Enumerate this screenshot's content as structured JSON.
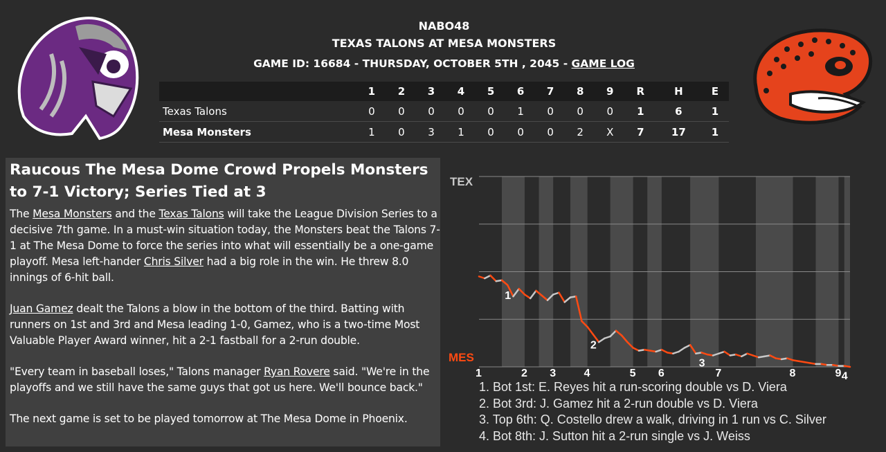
{
  "header": {
    "league": "NABO48",
    "matchup": "TEXAS TALONS AT MESA MONSTERS",
    "game_info": "GAME ID: 16684 - THURSDAY, OCTOBER 5TH , 2045 - ",
    "game_log_link": "GAME LOG"
  },
  "logos": {
    "away": "talons-bird-logo",
    "home": "monster-lizard-logo"
  },
  "colors": {
    "background": "#2b2b2b",
    "panel": "#404040",
    "mes_line": "#ff4a12",
    "tex_line": "#c8c8c8",
    "talons_purple": "#6b2a82",
    "monsters_orange": "#e5431c"
  },
  "linescore": {
    "headers": [
      "",
      "1",
      "2",
      "3",
      "4",
      "5",
      "6",
      "7",
      "8",
      "9",
      "R",
      "H",
      "E"
    ],
    "rows": [
      {
        "team": "Texas Talons",
        "innings": [
          "0",
          "0",
          "0",
          "0",
          "0",
          "1",
          "0",
          "0",
          "0"
        ],
        "r": "1",
        "h": "6",
        "e": "1"
      },
      {
        "team": "Mesa Monsters",
        "innings": [
          "1",
          "0",
          "3",
          "1",
          "0",
          "0",
          "0",
          "2",
          "X"
        ],
        "r": "7",
        "h": "17",
        "e": "1"
      }
    ]
  },
  "article": {
    "headline": "Raucous The Mesa Dome Crowd Propels Monsters to 7-1 Victory; Series Tied at 3",
    "p1": {
      "a": "The ",
      "link1": "Mesa Monsters",
      "b": " and the ",
      "link2": "Texas Talons",
      "c": " will take the League Division Series to a decisive 7th game. In a must-win situation today, the Monsters beat the Talons 7-1 at The Mesa Dome to force the series into what will essentially be a one-game playoff. Mesa left-hander ",
      "link3": "Chris Silver",
      "d": " had a big role in the win. He threw 8.0 innings of 6-hit ball."
    },
    "p2": {
      "link1": "Juan Gamez",
      "a": " dealt the Talons a blow in the bottom of the third. Batting with runners on 1st and 3rd and Mesa leading 1-0, Gamez, who is a two-time Most Valuable Player Award winner, hit a 2-1 fastball for a 2-run double."
    },
    "p3": {
      "a": "\"Every team in baseball loses,\" Talons manager ",
      "link1": "Ryan Rovere",
      "b": " said. \"We're in the playoffs and we still have the same guys that got us here. We'll bounce back.\""
    },
    "p4": "The next game is set to be played tomorrow at The Mesa Dome in Phoenix."
  },
  "chart_data": {
    "type": "line",
    "title": "",
    "y_top_label": "TEX",
    "y_bottom_label": "MES",
    "x_labels": [
      "1",
      "2",
      "3",
      "4",
      "5",
      "6",
      "7",
      "8",
      "9"
    ],
    "inning_starts": [
      0,
      8,
      13,
      19,
      27,
      32,
      42,
      55,
      63
    ],
    "ylim": [
      -1,
      1
    ],
    "grid": true,
    "win_probability_tex": [
      -0.05,
      -0.07,
      -0.04,
      -0.1,
      -0.09,
      -0.14,
      -0.26,
      -0.18,
      -0.24,
      -0.28,
      -0.2,
      -0.25,
      -0.3,
      -0.24,
      -0.22,
      -0.32,
      -0.27,
      -0.26,
      -0.52,
      -0.58,
      -0.66,
      -0.74,
      -0.7,
      -0.68,
      -0.62,
      -0.67,
      -0.74,
      -0.8,
      -0.83,
      -0.82,
      -0.83,
      -0.84,
      -0.82,
      -0.85,
      -0.86,
      -0.84,
      -0.8,
      -0.77,
      -0.86,
      -0.85,
      -0.87,
      -0.88,
      -0.86,
      -0.84,
      -0.88,
      -0.87,
      -0.89,
      -0.86,
      -0.88,
      -0.9,
      -0.89,
      -0.88,
      -0.91,
      -0.92,
      -0.91,
      -0.93,
      -0.94,
      -0.95,
      -0.96,
      -0.97,
      -0.97,
      -0.98,
      -0.98,
      -0.99,
      -0.99,
      -1.0
    ],
    "event_markers": [
      {
        "label": "1",
        "index": 5
      },
      {
        "label": "2",
        "index": 20
      },
      {
        "label": "3",
        "index": 39
      },
      {
        "label": "4",
        "index": 64
      }
    ],
    "events": [
      "1. Bot 1st: E. Reyes hit a run-scoring double vs D. Viera",
      "2. Bot 3rd: J. Gamez hit a 2-run double vs D. Viera",
      "3. Top 6th: Q. Costello drew a walk, driving in 1 run vs C. Silver",
      "4. Bot 8th: J. Sutton hit a 2-run single vs J. Weiss"
    ]
  }
}
